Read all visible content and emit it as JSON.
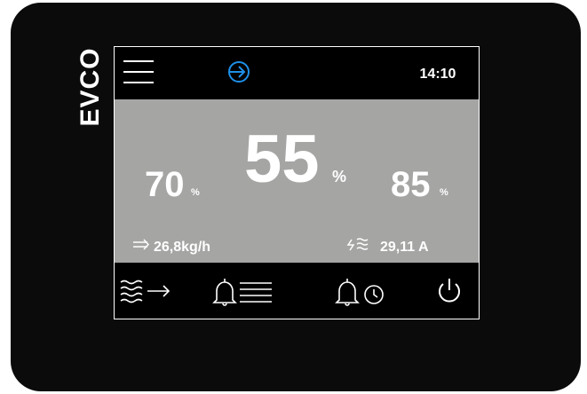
{
  "brand": "EVCO",
  "header": {
    "time": "14:10"
  },
  "readings": [
    {
      "value": "70",
      "unit": "%"
    },
    {
      "value": "55",
      "unit": "%"
    },
    {
      "value": "85",
      "unit": "%"
    }
  ],
  "status": {
    "flow": "26,8kg/h",
    "current": "29,11 A"
  }
}
